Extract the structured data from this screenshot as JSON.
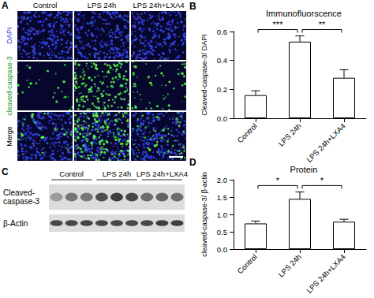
{
  "chart_data": [
    {
      "type": "bar",
      "title": "Immunofluorscence",
      "ylabel": "Cleaved-caspase-3/ DAPI",
      "categories": [
        "Control",
        "LPS 24h",
        "LPS 24h+LXA4"
      ],
      "values": [
        0.16,
        0.53,
        0.28
      ],
      "errors": [
        0.03,
        0.04,
        0.055
      ],
      "color": "#ffffff",
      "ylim": [
        0,
        0.6
      ],
      "yticks": [
        {
          "value": 0,
          "label": "0.0"
        },
        0.2,
        0.4,
        0.6
      ],
      "grid": false,
      "annotations": [
        {
          "from": "Control",
          "to": "LPS 24h",
          "label": "***"
        },
        {
          "from": "LPS 24h",
          "to": "LPS 24h+LXA4",
          "label": "**"
        }
      ]
    },
    {
      "type": "bar",
      "title": "Protein",
      "ylabel": "cleaved-caspase-3/ β-actin",
      "categories": [
        "Control",
        "LPS 24h",
        "LPS 24h+LXA4"
      ],
      "values": [
        0.74,
        1.45,
        0.79
      ],
      "errors": [
        0.07,
        0.2,
        0.07
      ],
      "color": "#ffffff",
      "ylim": [
        0,
        2
      ],
      "yticks": [
        {
          "value": 0,
          "label": "0.0"
        },
        0.5,
        {
          "value": 1,
          "label": "1.0"
        },
        1.5,
        {
          "value": 2,
          "label": "2.0"
        }
      ],
      "grid": false,
      "annotations": [
        {
          "from": "Control",
          "to": "LPS 24h",
          "label": "*"
        },
        {
          "from": "LPS 24h",
          "to": "LPS 24h+LXA4",
          "label": "*"
        }
      ]
    }
  ],
  "figure": {
    "chart_panel_letters": [
      "B",
      "D"
    ],
    "panel_A": {
      "letter": "A",
      "columns": [
        "Control",
        "LPS 24h",
        "LPS 24h+LXA4"
      ],
      "rows": [
        "DAPI",
        "cleaved-caspase-3",
        "Merge"
      ]
    },
    "panel_C": {
      "letter": "C",
      "groups": [
        "Control",
        "LPS 24h",
        "LPS 24h+LXA4"
      ],
      "bands": [
        {
          "label_lines": [
            "Cleaved-",
            "caspase-3"
          ]
        },
        {
          "label_lines": [
            "β-Actin"
          ]
        }
      ]
    }
  }
}
